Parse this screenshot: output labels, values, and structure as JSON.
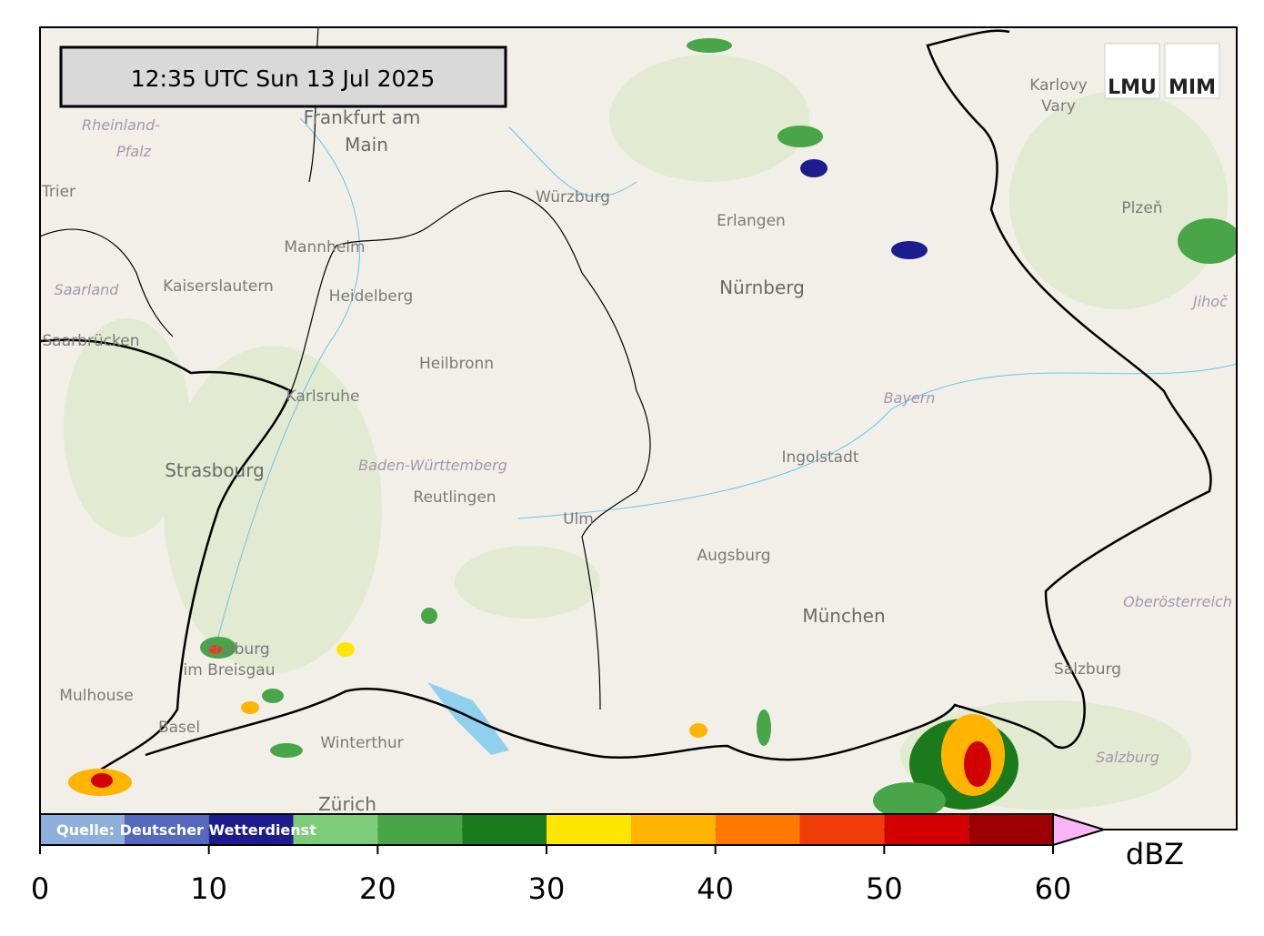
{
  "timestamp": "12:35 UTC  Sun 13 Jul 2025",
  "logos": [
    "LMU",
    "MIM"
  ],
  "source": "Quelle: Deutscher Wetterdienst",
  "places": [
    "Frankfurt am",
    "Main",
    "Rheinland-",
    "Pfalz",
    "Trier",
    "Würzburg",
    "Karlovy",
    "Vary",
    "Plzeň",
    "Erlangen",
    "Nürnberg",
    "Mannheim",
    "Kaiserslautern",
    "Saarland",
    "Heidelberg",
    "Saarbrücken",
    "Heilbronn",
    "Karlsruhe",
    "Bayern",
    "Strasbourg",
    "Baden-Württemberg",
    "Ingolstadt",
    "Reutlingen",
    "Ulm",
    "Augsburg",
    "München",
    "Oberösterreich",
    "Freiburg",
    "im Breisgau",
    "Mulhouse",
    "Salzburg",
    "Salzburg",
    "Basel",
    "Winterthur",
    "Zürich",
    "Jihoč"
  ],
  "colorbar": {
    "unit": "dBZ",
    "bounds": [
      0,
      5,
      10,
      15,
      20,
      25,
      30,
      35,
      40,
      45,
      50,
      55,
      60
    ],
    "colors": [
      "#8eaedb",
      "#5468bd",
      "#1c1c8f",
      "#7dcc7a",
      "#48a548",
      "#1b7a1b",
      "#ffe600",
      "#ffb400",
      "#ff7800",
      "#f03c0a",
      "#d20000",
      "#9c0000"
    ],
    "extend_color": "#f8b4f4",
    "ticks": [
      0,
      10,
      20,
      30,
      40,
      50,
      60
    ]
  }
}
